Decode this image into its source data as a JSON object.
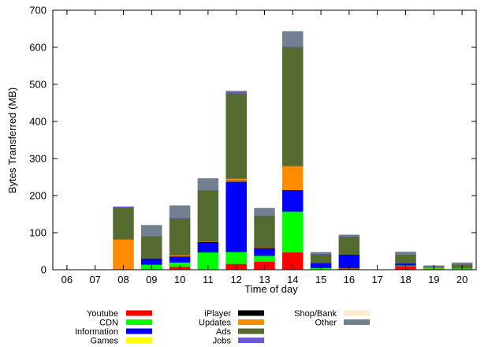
{
  "chart_data": {
    "type": "bar",
    "stacked": true,
    "xlabel": "Time of day",
    "ylabel": "Bytes Transferred (MB)",
    "ylim": [
      0,
      700
    ],
    "yticks": [
      0,
      100,
      200,
      300,
      400,
      500,
      600,
      700
    ],
    "grid": false,
    "legend_position": "bottom",
    "categories": [
      "06",
      "07",
      "08",
      "09",
      "10",
      "11",
      "12",
      "13",
      "14",
      "15",
      "16",
      "17",
      "18",
      "19",
      "20"
    ],
    "series": [
      {
        "name": "Youtube",
        "color": "#ff0000",
        "values": [
          0,
          0,
          0,
          2,
          8,
          0,
          16,
          22,
          47,
          0,
          4,
          0,
          10,
          2,
          0
        ]
      },
      {
        "name": "CDN",
        "color": "#00ff00",
        "values": [
          0,
          0,
          0,
          12,
          12,
          47,
          32,
          16,
          110,
          5,
          1,
          0,
          2,
          2,
          4
        ]
      },
      {
        "name": "Information",
        "color": "#0000ff",
        "values": [
          0,
          0,
          0,
          15,
          15,
          27,
          190,
          20,
          57,
          13,
          36,
          0,
          5,
          0,
          0
        ]
      },
      {
        "name": "Games",
        "color": "#ffff00",
        "values": [
          0,
          0,
          0,
          0,
          0,
          0,
          1,
          0,
          0,
          0,
          0,
          0,
          0,
          0,
          0
        ]
      },
      {
        "name": "iPlayer",
        "color": "#000000",
        "values": [
          0,
          0,
          0,
          1,
          1,
          1,
          1,
          1,
          1,
          0,
          0,
          0,
          0,
          0,
          0
        ]
      },
      {
        "name": "Updates",
        "color": "#ff8c00",
        "values": [
          0,
          0,
          82,
          0,
          3,
          1,
          6,
          1,
          65,
          0,
          0,
          0,
          0,
          2,
          0
        ]
      },
      {
        "name": "Ads",
        "color": "#556b2f",
        "values": [
          0,
          0,
          86,
          60,
          100,
          138,
          230,
          85,
          320,
          24,
          48,
          0,
          23,
          2,
          10
        ]
      },
      {
        "name": "Jobs",
        "color": "#6a5acd",
        "values": [
          0,
          0,
          2,
          1,
          1,
          1,
          4,
          1,
          3,
          1,
          1,
          0,
          1,
          1,
          1
        ]
      },
      {
        "name": "Shop/Bank",
        "color": "#ffebcd",
        "values": [
          0,
          0,
          0,
          0,
          0,
          0,
          0,
          0,
          0,
          0,
          0,
          0,
          0,
          0,
          0
        ]
      },
      {
        "name": "Other",
        "color": "#708090",
        "values": [
          0,
          0,
          0,
          29,
          33,
          31,
          2,
          20,
          40,
          4,
          4,
          0,
          7,
          2,
          4
        ]
      }
    ]
  }
}
